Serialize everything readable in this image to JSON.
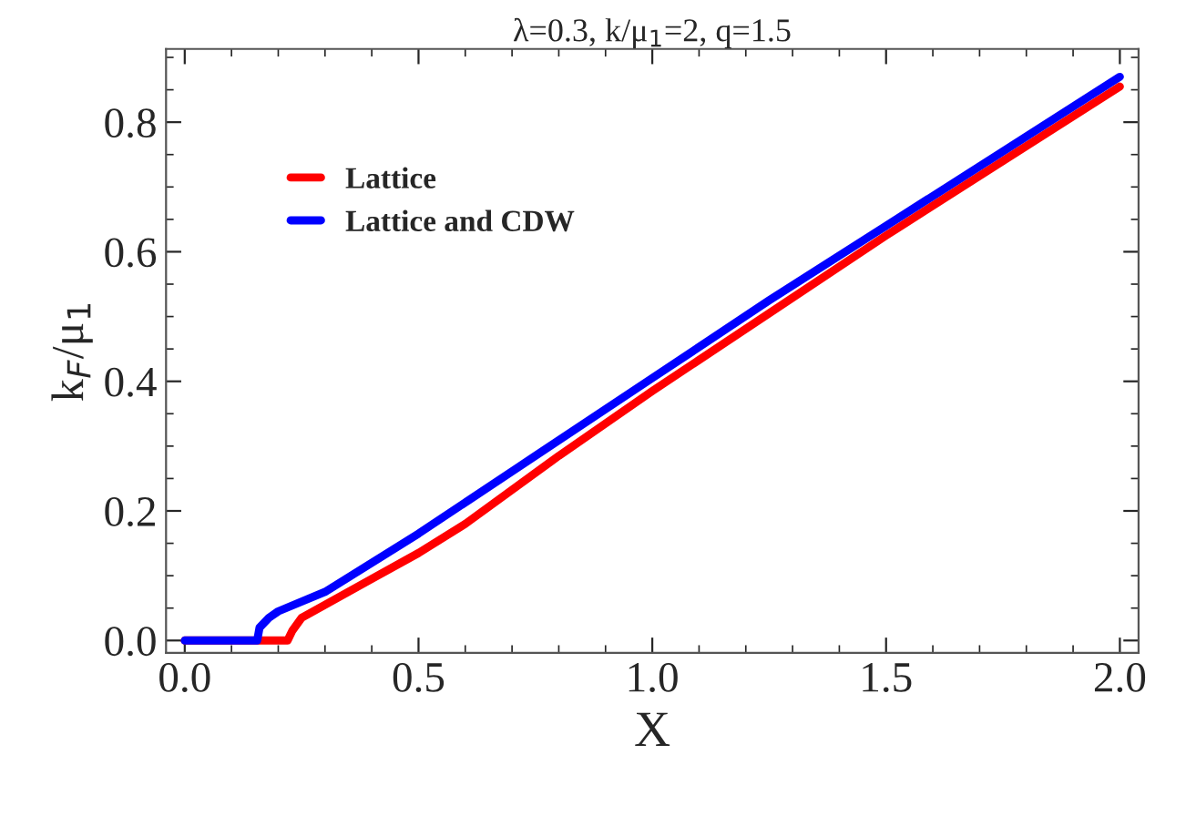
{
  "chart_data": {
    "type": "line",
    "title": "λ=0.3, k/μ$_{1}$=2, q=1.5",
    "xlabel": "X",
    "ylabel": "k$_{F}$/μ$_{1}$",
    "series": [
      {
        "name": "Lattice",
        "color": "#ff0000",
        "x": [
          0,
          0.1,
          0.2,
          0.22,
          0.23,
          0.25,
          0.3,
          0.4,
          0.5,
          0.6,
          0.8,
          1.0,
          1.25,
          1.5,
          1.75,
          2.0
        ],
        "values": [
          0,
          0,
          0,
          0,
          0.015,
          0.035,
          0.055,
          0.095,
          0.135,
          0.18,
          0.285,
          0.385,
          0.505,
          0.625,
          0.74,
          0.855
        ]
      },
      {
        "name": "Lattice and CDW",
        "color": "#0000ff",
        "x": [
          0,
          0.1,
          0.155,
          0.16,
          0.18,
          0.2,
          0.3,
          0.4,
          0.5,
          0.75,
          1.0,
          1.25,
          1.5,
          1.75,
          2.0
        ],
        "values": [
          0,
          0,
          0,
          0.02,
          0.035,
          0.045,
          0.075,
          0.12,
          0.165,
          0.285,
          0.405,
          0.525,
          0.64,
          0.755,
          0.87
        ]
      }
    ],
    "xlim": [
      -0.04,
      2.04
    ],
    "ylim": [
      -0.019,
      0.913
    ],
    "xticks": [
      {
        "value": 0,
        "label": "0.0"
      },
      0.5,
      {
        "value": 1,
        "label": "1.0"
      },
      1.5,
      {
        "value": 2,
        "label": "2.0"
      }
    ],
    "yticks": [
      {
        "value": 0,
        "label": "0.0"
      },
      0.2,
      0.4,
      0.6,
      0.8
    ],
    "legend": "top left",
    "grid": false,
    "marker": "none",
    "line_style": "solid"
  }
}
